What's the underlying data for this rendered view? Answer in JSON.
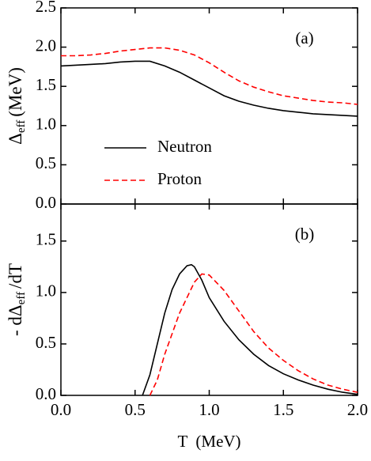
{
  "chart_data": [
    {
      "type": "line",
      "ylabel": [
        "Δ",
        "eff",
        "(MeV)"
      ],
      "annotation": "(a)",
      "legend": "center-left",
      "xlim": [
        0,
        2
      ],
      "xticks": [
        0,
        0.5,
        1,
        1.5,
        2
      ],
      "ylim": [
        0,
        2.5
      ],
      "yticks": [
        {
          "value": 0,
          "label": "0.0"
        },
        0.5,
        {
          "value": 1,
          "label": "1.0"
        },
        1.5,
        {
          "value": 2,
          "label": "2.0"
        },
        2.5
      ],
      "series": [
        {
          "name": "Neutron",
          "color": "#000000",
          "dash": "solid",
          "x": [
            0,
            0.1,
            0.2,
            0.3,
            0.4,
            0.5,
            0.6,
            0.7,
            0.8,
            0.9,
            1.0,
            1.1,
            1.2,
            1.3,
            1.4,
            1.5,
            1.6,
            1.7,
            1.8,
            1.9,
            2.0
          ],
          "values": [
            1.76,
            1.77,
            1.78,
            1.79,
            1.81,
            1.82,
            1.82,
            1.76,
            1.68,
            1.58,
            1.48,
            1.38,
            1.31,
            1.26,
            1.22,
            1.19,
            1.17,
            1.15,
            1.14,
            1.13,
            1.12
          ]
        },
        {
          "name": "Proton",
          "color": "#ff0000",
          "dash": "dashed",
          "x": [
            0,
            0.1,
            0.2,
            0.3,
            0.4,
            0.5,
            0.6,
            0.7,
            0.8,
            0.9,
            1.0,
            1.1,
            1.2,
            1.3,
            1.4,
            1.5,
            1.6,
            1.7,
            1.8,
            1.9,
            2.0
          ],
          "values": [
            1.89,
            1.89,
            1.9,
            1.92,
            1.95,
            1.97,
            1.99,
            1.99,
            1.96,
            1.9,
            1.8,
            1.68,
            1.57,
            1.49,
            1.43,
            1.38,
            1.35,
            1.32,
            1.3,
            1.29,
            1.27
          ]
        }
      ]
    },
    {
      "type": "line",
      "ylabel": [
        "- dΔ",
        "eff",
        "/dT"
      ],
      "xlabel": "T  (MeV)",
      "annotation": "(b)",
      "xlim": [
        0,
        2
      ],
      "xticks": [
        {
          "value": 0,
          "label": "0.0"
        },
        0.5,
        {
          "value": 1,
          "label": "1.0"
        },
        1.5,
        {
          "value": 2,
          "label": "2.0"
        }
      ],
      "ylim": [
        0,
        1.86
      ],
      "yticks": [
        {
          "value": 0,
          "label": "0.0"
        },
        0.5,
        {
          "value": 1,
          "label": "1.0"
        },
        1.5
      ],
      "series": [
        {
          "name": "Neutron",
          "color": "#000000",
          "dash": "solid",
          "x": [
            0.55,
            0.6,
            0.65,
            0.7,
            0.75,
            0.8,
            0.85,
            0.88,
            0.9,
            0.95,
            1.0,
            1.1,
            1.2,
            1.3,
            1.4,
            1.5,
            1.6,
            1.7,
            1.8,
            1.9,
            2.0
          ],
          "values": [
            0,
            0.2,
            0.5,
            0.8,
            1.03,
            1.18,
            1.26,
            1.27,
            1.25,
            1.12,
            0.95,
            0.72,
            0.54,
            0.4,
            0.29,
            0.21,
            0.15,
            0.1,
            0.06,
            0.03,
            0.01
          ]
        },
        {
          "name": "Proton",
          "color": "#ff0000",
          "dash": "dashed",
          "x": [
            0.6,
            0.65,
            0.7,
            0.8,
            0.9,
            0.95,
            1.0,
            1.1,
            1.2,
            1.3,
            1.4,
            1.5,
            1.6,
            1.7,
            1.8,
            1.9,
            2.0
          ],
          "values": [
            0,
            0.15,
            0.4,
            0.8,
            1.1,
            1.18,
            1.17,
            1.02,
            0.82,
            0.62,
            0.46,
            0.34,
            0.24,
            0.16,
            0.1,
            0.06,
            0.03
          ]
        }
      ]
    }
  ]
}
